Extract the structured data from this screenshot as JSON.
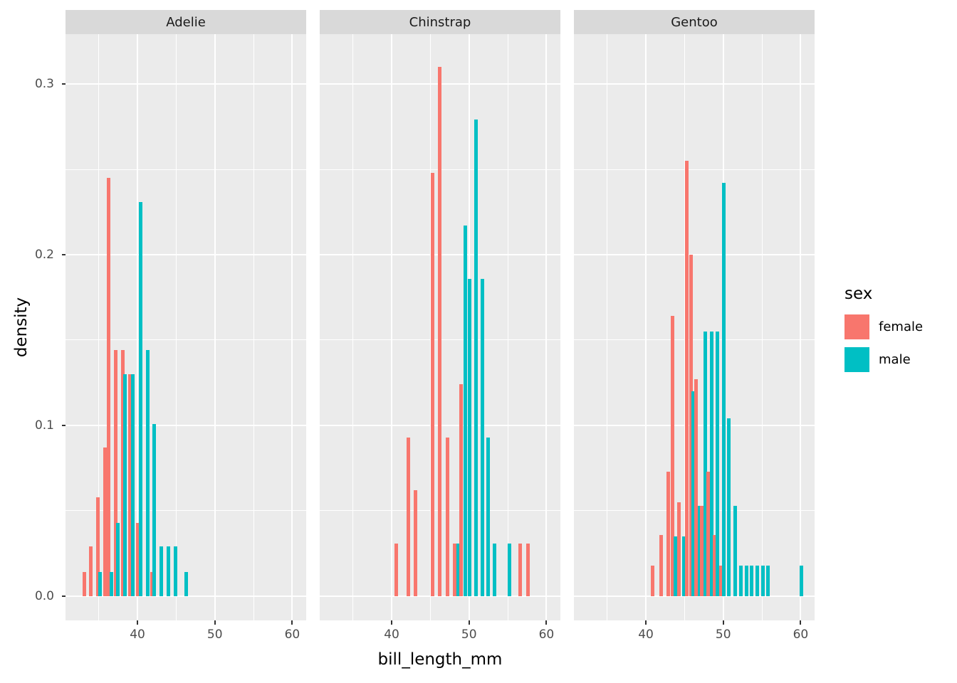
{
  "chart_data": {
    "type": "bar",
    "subtype": "dodged-histogram",
    "title": "",
    "xlabel": "bill_length_mm",
    "ylabel": "density",
    "x_domain": [
      30.7,
      61.8
    ],
    "y_domain": [
      -0.0142,
      0.3292
    ],
    "x_major_ticks": [
      40,
      50,
      60
    ],
    "x_minor_ticks": [
      35,
      45,
      55
    ],
    "y_major_ticks": [
      0.0,
      0.1,
      0.2,
      0.3
    ],
    "y_minor_ticks": [
      0.05,
      0.15,
      0.25
    ],
    "y_tick_labels": [
      "0.0",
      "0.1",
      "0.2",
      "0.3"
    ],
    "grid": "on",
    "legend": {
      "title": "sex",
      "position": "right",
      "entries": [
        {
          "label": "female",
          "color": "#F8766D"
        },
        {
          "label": "male",
          "color": "#00BFC4"
        }
      ]
    },
    "colors": {
      "female": "#F8766D",
      "male": "#00BFC4",
      "panel_bg": "#EBEBEB",
      "strip_bg": "#D9D9D9",
      "grid": "#FFFFFF",
      "tick_text": "#4D4D4D"
    },
    "facets": [
      {
        "name": "Adelie",
        "bars": [
          {
            "x": 33.1,
            "sex": "female",
            "density": 0.014
          },
          {
            "x": 34.0,
            "sex": "female",
            "density": 0.029
          },
          {
            "x": 34.9,
            "sex": "female",
            "density": 0.058
          },
          {
            "x": 35.2,
            "sex": "male",
            "density": 0.014
          },
          {
            "x": 35.8,
            "sex": "female",
            "density": 0.087
          },
          {
            "x": 36.3,
            "sex": "female",
            "density": 0.245
          },
          {
            "x": 36.6,
            "sex": "male",
            "density": 0.014
          },
          {
            "x": 37.2,
            "sex": "female",
            "density": 0.144
          },
          {
            "x": 37.5,
            "sex": "male",
            "density": 0.043
          },
          {
            "x": 38.1,
            "sex": "female",
            "density": 0.144
          },
          {
            "x": 38.4,
            "sex": "male",
            "density": 0.13
          },
          {
            "x": 39.0,
            "sex": "female",
            "density": 0.13
          },
          {
            "x": 39.4,
            "sex": "male",
            "density": 0.13
          },
          {
            "x": 40.0,
            "sex": "female",
            "density": 0.043
          },
          {
            "x": 40.4,
            "sex": "male",
            "density": 0.231
          },
          {
            "x": 41.3,
            "sex": "male",
            "density": 0.144
          },
          {
            "x": 41.9,
            "sex": "female",
            "density": 0.014
          },
          {
            "x": 42.2,
            "sex": "male",
            "density": 0.101
          },
          {
            "x": 43.1,
            "sex": "male",
            "density": 0.029
          },
          {
            "x": 44.0,
            "sex": "male",
            "density": 0.029
          },
          {
            "x": 44.9,
            "sex": "male",
            "density": 0.029
          },
          {
            "x": 46.3,
            "sex": "male",
            "density": 0.014
          }
        ]
      },
      {
        "name": "Chinstrap",
        "bars": [
          {
            "x": 40.6,
            "sex": "female",
            "density": 0.031
          },
          {
            "x": 42.2,
            "sex": "female",
            "density": 0.093
          },
          {
            "x": 43.1,
            "sex": "female",
            "density": 0.062
          },
          {
            "x": 45.3,
            "sex": "female",
            "density": 0.248
          },
          {
            "x": 46.2,
            "sex": "female",
            "density": 0.31
          },
          {
            "x": 47.2,
            "sex": "female",
            "density": 0.093
          },
          {
            "x": 48.1,
            "sex": "female",
            "density": 0.031
          },
          {
            "x": 48.6,
            "sex": "male",
            "density": 0.031
          },
          {
            "x": 49.0,
            "sex": "female",
            "density": 0.124
          },
          {
            "x": 49.5,
            "sex": "male",
            "density": 0.217
          },
          {
            "x": 50.1,
            "sex": "male",
            "density": 0.186
          },
          {
            "x": 50.9,
            "sex": "male",
            "density": 0.279
          },
          {
            "x": 51.7,
            "sex": "male",
            "density": 0.186
          },
          {
            "x": 52.5,
            "sex": "male",
            "density": 0.093
          },
          {
            "x": 53.3,
            "sex": "male",
            "density": 0.031
          },
          {
            "x": 55.2,
            "sex": "male",
            "density": 0.031
          },
          {
            "x": 56.6,
            "sex": "female",
            "density": 0.031
          },
          {
            "x": 57.6,
            "sex": "female",
            "density": 0.031
          }
        ]
      },
      {
        "name": "Gentoo",
        "bars": [
          {
            "x": 40.9,
            "sex": "female",
            "density": 0.018
          },
          {
            "x": 42.0,
            "sex": "female",
            "density": 0.036
          },
          {
            "x": 42.9,
            "sex": "female",
            "density": 0.073
          },
          {
            "x": 43.4,
            "sex": "female",
            "density": 0.164
          },
          {
            "x": 43.8,
            "sex": "male",
            "density": 0.035
          },
          {
            "x": 44.3,
            "sex": "female",
            "density": 0.055
          },
          {
            "x": 44.9,
            "sex": "male",
            "density": 0.035
          },
          {
            "x": 45.3,
            "sex": "female",
            "density": 0.255
          },
          {
            "x": 45.8,
            "sex": "female",
            "density": 0.2
          },
          {
            "x": 46.1,
            "sex": "male",
            "density": 0.12
          },
          {
            "x": 46.5,
            "sex": "female",
            "density": 0.127
          },
          {
            "x": 46.9,
            "sex": "male",
            "density": 0.053
          },
          {
            "x": 47.2,
            "sex": "female",
            "density": 0.053
          },
          {
            "x": 47.7,
            "sex": "male",
            "density": 0.155
          },
          {
            "x": 48.0,
            "sex": "female",
            "density": 0.073
          },
          {
            "x": 48.5,
            "sex": "male",
            "density": 0.155
          },
          {
            "x": 48.9,
            "sex": "female",
            "density": 0.036
          },
          {
            "x": 49.2,
            "sex": "male",
            "density": 0.155
          },
          {
            "x": 49.7,
            "sex": "female",
            "density": 0.018
          },
          {
            "x": 50.1,
            "sex": "male",
            "density": 0.242
          },
          {
            "x": 50.7,
            "sex": "male",
            "density": 0.104
          },
          {
            "x": 51.5,
            "sex": "male",
            "density": 0.053
          },
          {
            "x": 52.3,
            "sex": "male",
            "density": 0.018
          },
          {
            "x": 53.0,
            "sex": "male",
            "density": 0.018
          },
          {
            "x": 53.7,
            "sex": "male",
            "density": 0.018
          },
          {
            "x": 54.4,
            "sex": "male",
            "density": 0.018
          },
          {
            "x": 55.1,
            "sex": "male",
            "density": 0.018
          },
          {
            "x": 55.8,
            "sex": "male",
            "density": 0.018
          },
          {
            "x": 60.1,
            "sex": "male",
            "density": 0.018
          }
        ]
      }
    ]
  }
}
